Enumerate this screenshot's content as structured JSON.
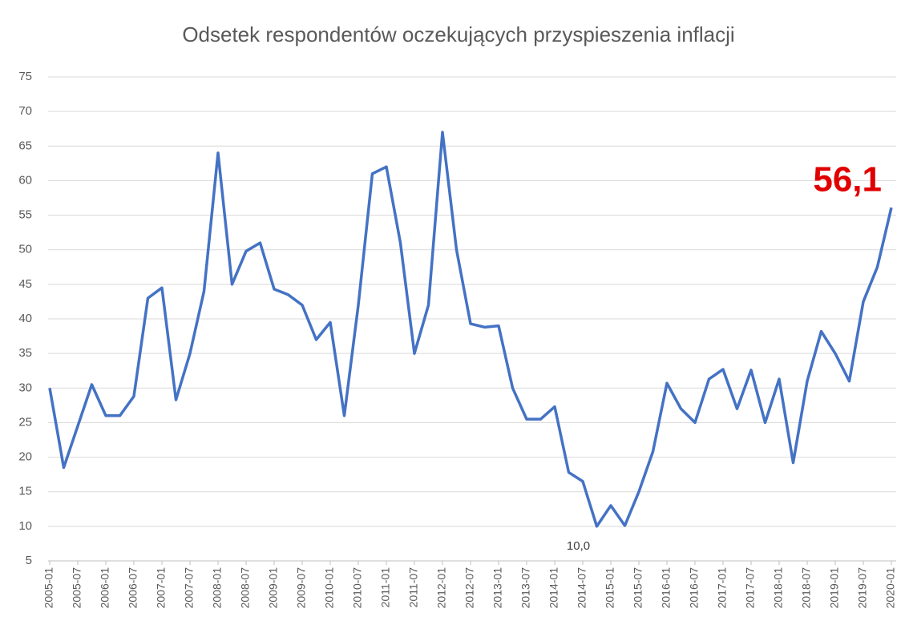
{
  "chart_data": {
    "type": "line",
    "title": "Odsetek respondentów oczekujących przyspieszenia inflacji",
    "categories": [
      "2005-01",
      null,
      "2005-07",
      null,
      "2006-01",
      null,
      "2006-07",
      null,
      "2007-01",
      null,
      "2007-07",
      null,
      "2008-01",
      null,
      "2008-07",
      null,
      "2009-01",
      null,
      "2009-07",
      null,
      "2010-01",
      null,
      "2010-07",
      null,
      "2011-01",
      null,
      "2011-07",
      null,
      "2012-01",
      null,
      "2012-07",
      null,
      "2013-01",
      null,
      "2013-07",
      null,
      "2014-01",
      null,
      "2014-07",
      null,
      "2015-01",
      null,
      "2015-07",
      null,
      "2016-01",
      null,
      "2016-07",
      null,
      "2017-01",
      null,
      "2017-07",
      null,
      "2018-01",
      null,
      "2018-07",
      null,
      "2019-01",
      null,
      "2019-07",
      null,
      "2020-01"
    ],
    "values": [
      30,
      18.5,
      24.5,
      30.5,
      26,
      26,
      28.8,
      43,
      44.5,
      28.3,
      35,
      44,
      64,
      45,
      49.8,
      51,
      44.3,
      43.5,
      42,
      37,
      39.5,
      26,
      42,
      61,
      62,
      51,
      35,
      42,
      67,
      50,
      39.3,
      38.8,
      39,
      30,
      25.5,
      25.5,
      27.3,
      17.8,
      16.5,
      10,
      13,
      10.1,
      15,
      20.8,
      30.7,
      27,
      25,
      31.3,
      32.7,
      27,
      32.6,
      25,
      31.3,
      19.2,
      31,
      38.2,
      35,
      31,
      42.5,
      47.5,
      56.1
    ],
    "value_labels": [
      null,
      null,
      null,
      null,
      null,
      null,
      null,
      null,
      null,
      null,
      null,
      null,
      null,
      null,
      null,
      null,
      null,
      null,
      null,
      null,
      null,
      null,
      null,
      null,
      null,
      null,
      null,
      null,
      null,
      null,
      null,
      null,
      null,
      null,
      null,
      null,
      null,
      null,
      null,
      "10,0",
      null,
      null,
      null,
      null,
      null,
      null,
      null,
      null,
      null,
      null,
      null,
      null,
      null,
      null,
      null,
      null,
      null,
      null,
      null,
      null,
      "56,1"
    ],
    "color": "#4472c4",
    "ylim": [
      5,
      75
    ],
    "yticks": [
      5,
      10,
      15,
      20,
      25,
      30,
      35,
      40,
      45,
      50,
      55,
      60,
      65,
      70,
      75
    ],
    "grid": true
  }
}
